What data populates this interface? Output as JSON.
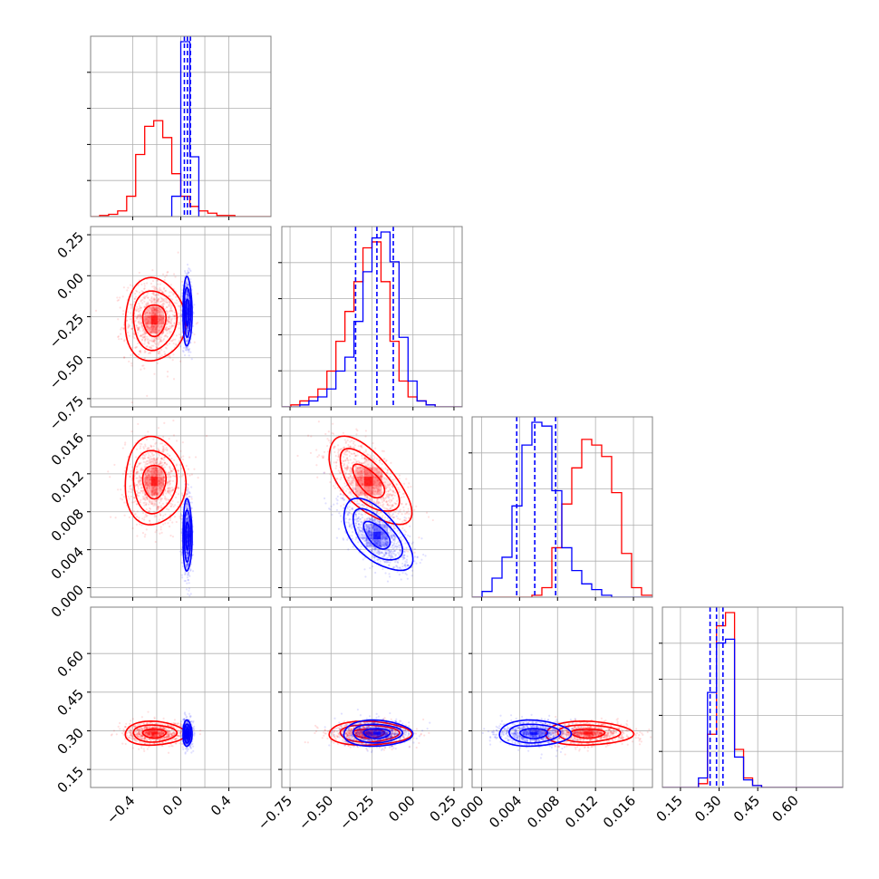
{
  "chart_data": {
    "type": "corner",
    "title": "",
    "series": [
      {
        "name": "",
        "color": "#ff0000"
      },
      {
        "name": "",
        "color": "#0000ff"
      }
    ],
    "parameters": [
      {
        "range": [
          -0.75,
          0.75
        ],
        "ticks": [
          -0.4,
          0.0,
          0.4
        ],
        "tick_labels": [
          "−0.4",
          "0.0",
          "0.4"
        ],
        "grid": [
          -0.4,
          -0.2,
          0.0,
          0.2,
          0.4
        ]
      },
      {
        "range": [
          -0.8,
          0.3
        ],
        "ticks": [
          -0.75,
          -0.5,
          -0.25,
          0.0,
          0.25
        ],
        "tick_labels": [
          "−0.75",
          "−0.50",
          "−0.25",
          "0.00",
          "0.25"
        ],
        "grid": [
          -0.75,
          -0.5,
          -0.25,
          0.0,
          0.25
        ]
      },
      {
        "range": [
          -0.001,
          0.018
        ],
        "ticks": [
          0.0,
          0.004,
          0.008,
          0.012,
          0.016
        ],
        "tick_labels": [
          "0.000",
          "0.004",
          "0.008",
          "0.012",
          "0.016"
        ],
        "grid": [
          0.0,
          0.004,
          0.008,
          0.012,
          0.016
        ]
      },
      {
        "range": [
          0.08,
          0.78
        ],
        "ticks": [
          0.15,
          0.3,
          0.45,
          0.6
        ],
        "tick_labels": [
          "0.15",
          "0.30",
          "0.45",
          "0.60"
        ],
        "grid": [
          0.15,
          0.3,
          0.45,
          0.6
        ]
      }
    ],
    "distributions": {
      "red": {
        "mean": [
          -0.22,
          -0.27,
          0.0112,
          0.29
        ],
        "std": [
          0.12,
          0.12,
          0.0022,
          0.022
        ],
        "corr": {
          "1-2": -0.65
        }
      },
      "blue": {
        "mean": [
          0.055,
          -0.22,
          0.0055,
          0.29
        ],
        "std": [
          0.018,
          0.1,
          0.0018,
          0.024
        ],
        "corr": {
          "1-2": -0.6
        }
      }
    },
    "histograms": {
      "p0": {
        "red": {
          "edges": [
            -0.75,
            -0.675,
            -0.6,
            -0.525,
            -0.45,
            -0.375,
            -0.3,
            -0.225,
            -0.15,
            -0.075,
            0.0,
            0.075,
            0.15,
            0.225,
            0.3,
            0.375,
            0.45,
            0.525,
            0.6,
            0.675,
            0.75
          ],
          "counts": [
            0,
            1,
            2,
            5,
            18,
            55,
            80,
            85,
            70,
            38,
            18,
            9,
            5,
            3,
            1,
            1,
            0,
            0,
            0,
            0
          ]
        },
        "blue": {
          "edges": [
            -0.075,
            0.0,
            0.075,
            0.15
          ],
          "counts": [
            18,
            155,
            53
          ]
        },
        "quantiles": [
          0.03,
          0.055,
          0.08
        ]
      },
      "p1": {
        "red": {
          "edges": [
            -0.8,
            -0.745,
            -0.69,
            -0.635,
            -0.58,
            -0.525,
            -0.47,
            -0.415,
            -0.36,
            -0.305,
            -0.25,
            -0.195,
            -0.14,
            -0.085,
            -0.03,
            0.025,
            0.08,
            0.135,
            0.19,
            0.245,
            0.3
          ],
          "counts": [
            0,
            1,
            3,
            5,
            9,
            18,
            33,
            48,
            63,
            80,
            83,
            63,
            33,
            13,
            5,
            3,
            1,
            0,
            0,
            0
          ]
        },
        "blue": {
          "edges": [
            -0.8,
            -0.745,
            -0.69,
            -0.635,
            -0.58,
            -0.525,
            -0.47,
            -0.415,
            -0.36,
            -0.305,
            -0.25,
            -0.195,
            -0.14,
            -0.085,
            -0.03,
            0.025,
            0.08,
            0.135,
            0.19,
            0.245,
            0.3
          ],
          "counts": [
            0,
            0,
            1,
            3,
            5,
            9,
            18,
            25,
            43,
            68,
            85,
            88,
            73,
            35,
            13,
            3,
            1,
            0,
            0,
            0
          ]
        },
        "quantiles": [
          -0.35,
          -0.22,
          -0.12
        ]
      },
      "p2": {
        "red": {
          "edges": [
            -0.001,
            5e-05,
            0.0011,
            0.00215,
            0.0032,
            0.00425,
            0.0053,
            0.00635,
            0.0074,
            0.00845,
            0.0095,
            0.01055,
            0.0116,
            0.01265,
            0.0137,
            0.01475,
            0.0158,
            0.01685,
            0.018
          ],
          "counts": [
            0,
            0,
            0,
            0,
            0,
            0,
            1,
            5,
            26,
            49,
            68,
            83,
            80,
            74,
            55,
            23,
            5,
            1
          ]
        },
        "blue": {
          "edges": [
            -0.001,
            5e-05,
            0.0011,
            0.00215,
            0.0032,
            0.00425,
            0.0053,
            0.00635,
            0.0074,
            0.00845,
            0.0095,
            0.01055,
            0.0116,
            0.01265,
            0.0137,
            0.01475,
            0.0158,
            0.01685,
            0.018
          ],
          "counts": [
            0,
            3,
            10,
            21,
            48,
            80,
            92,
            90,
            56,
            26,
            14,
            7,
            4,
            1,
            0,
            0,
            0,
            0
          ]
        },
        "quantiles": [
          0.0037,
          0.0056,
          0.0078
        ]
      },
      "p3": {
        "red": {
          "edges": [
            0.08,
            0.115,
            0.15,
            0.185,
            0.22,
            0.255,
            0.29,
            0.325,
            0.36,
            0.395,
            0.43,
            0.465,
            0.5,
            0.535,
            0.57,
            0.605,
            0.64,
            0.675,
            0.71,
            0.745,
            0.78
          ],
          "counts": [
            0,
            0,
            0,
            0,
            2,
            28,
            85,
            92,
            20,
            5,
            1,
            0,
            0,
            0,
            0,
            0,
            0,
            0,
            0,
            0
          ]
        },
        "blue": {
          "edges": [
            0.08,
            0.115,
            0.15,
            0.185,
            0.22,
            0.255,
            0.29,
            0.325,
            0.36,
            0.395,
            0.43,
            0.465,
            0.5,
            0.535,
            0.57,
            0.605,
            0.64,
            0.675,
            0.71,
            0.745,
            0.78
          ],
          "counts": [
            0,
            0,
            0,
            0,
            5,
            50,
            76,
            78,
            16,
            4,
            1,
            0,
            0,
            0,
            0,
            0,
            0,
            0,
            0,
            0
          ]
        },
        "quantiles": [
          0.265,
          0.29,
          0.315
        ]
      }
    },
    "grid": true,
    "legend": "none"
  }
}
